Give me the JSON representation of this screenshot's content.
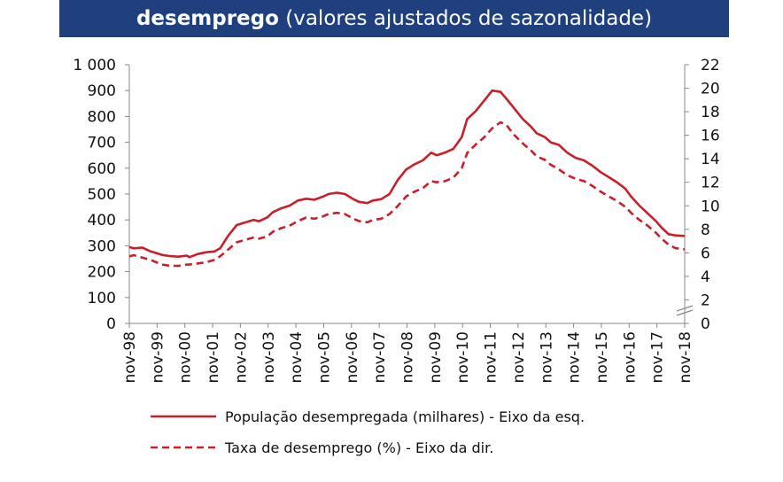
{
  "title": {
    "bold": "desemprego",
    "rest": " (valores ajustados de sazonalidade)"
  },
  "colors": {
    "header_bg": "#1f3f7f",
    "series": "#c8202b",
    "axis": "#888888"
  },
  "chart_data": {
    "type": "line",
    "title": "desemprego (valores ajustados de sazonalidade)",
    "x_tick_labels": [
      "nov-98",
      "nov-99",
      "nov-00",
      "nov-01",
      "nov-02",
      "nov-03",
      "nov-04",
      "nov-05",
      "nov-06",
      "nov-07",
      "nov-08",
      "nov-09",
      "nov-10",
      "nov-11",
      "nov-12",
      "nov-13",
      "nov-14",
      "nov-15",
      "nov-16",
      "nov-17",
      "nov-18"
    ],
    "y_left": {
      "ticks": [
        "0",
        "100",
        "200",
        "300",
        "400",
        "500",
        "600",
        "700",
        "800",
        "900",
        "1 000"
      ],
      "ylim": [
        0,
        1000
      ]
    },
    "y_right": {
      "ticks": [
        "0",
        "2",
        "4",
        "6",
        "8",
        "10",
        "12",
        "14",
        "16",
        "18",
        "20",
        "22"
      ],
      "ylim": [
        0,
        22
      ]
    },
    "legend_position": "bottom",
    "grid": false,
    "series": [
      {
        "name": "População desempregada (milhares) - Eixo da esq.",
        "axis": "left",
        "style": "solid",
        "x": [
          1998.83,
          1999.0,
          1999.3,
          1999.6,
          1999.8,
          2000.0,
          2000.3,
          2000.6,
          2000.9,
          2001.0,
          2001.3,
          2001.6,
          2001.9,
          2002.1,
          2002.4,
          2002.7,
          2003.0,
          2003.3,
          2003.5,
          2003.8,
          2004.0,
          2004.3,
          2004.6,
          2004.9,
          2005.2,
          2005.5,
          2005.8,
          2006.0,
          2006.3,
          2006.6,
          2006.9,
          2007.1,
          2007.4,
          2007.6,
          2007.9,
          2008.2,
          2008.5,
          2008.8,
          2009.1,
          2009.4,
          2009.7,
          2009.9,
          2010.2,
          2010.5,
          2010.8,
          2011.0,
          2011.3,
          2011.6,
          2011.9,
          2012.2,
          2012.4,
          2012.7,
          2013.0,
          2013.3,
          2013.5,
          2013.8,
          2014.0,
          2014.3,
          2014.6,
          2014.9,
          2015.2,
          2015.5,
          2015.8,
          2016.1,
          2016.4,
          2016.7,
          2016.9,
          2017.2,
          2017.5,
          2017.8,
          2018.0,
          2018.25,
          2018.5,
          2018.83
        ],
        "values": [
          295,
          290,
          293,
          278,
          272,
          265,
          260,
          258,
          262,
          256,
          268,
          275,
          278,
          290,
          340,
          380,
          390,
          400,
          395,
          410,
          430,
          445,
          455,
          475,
          482,
          478,
          490,
          500,
          505,
          500,
          480,
          470,
          465,
          475,
          480,
          500,
          555,
          595,
          615,
          630,
          660,
          650,
          660,
          675,
          720,
          790,
          820,
          860,
          900,
          895,
          870,
          830,
          790,
          760,
          735,
          720,
          700,
          690,
          660,
          640,
          630,
          610,
          585,
          565,
          545,
          520,
          490,
          455,
          425,
          395,
          370,
          345,
          340,
          338
        ]
      },
      {
        "name": "Taxa de desemprego (%) - Eixo da dir.",
        "axis": "right",
        "style": "dashed",
        "x": [
          1998.83,
          1999.0,
          1999.3,
          1999.6,
          1999.8,
          2000.0,
          2000.3,
          2000.6,
          2000.9,
          2001.0,
          2001.3,
          2001.6,
          2001.9,
          2002.1,
          2002.4,
          2002.7,
          2003.0,
          2003.3,
          2003.5,
          2003.8,
          2004.0,
          2004.3,
          2004.6,
          2004.9,
          2005.2,
          2005.5,
          2005.8,
          2006.0,
          2006.3,
          2006.6,
          2006.9,
          2007.1,
          2007.4,
          2007.6,
          2007.9,
          2008.2,
          2008.5,
          2008.8,
          2009.1,
          2009.4,
          2009.7,
          2009.9,
          2010.2,
          2010.5,
          2010.8,
          2011.0,
          2011.3,
          2011.6,
          2011.9,
          2012.2,
          2012.4,
          2012.7,
          2013.0,
          2013.3,
          2013.5,
          2013.8,
          2014.0,
          2014.3,
          2014.6,
          2014.9,
          2015.2,
          2015.5,
          2015.8,
          2016.1,
          2016.4,
          2016.7,
          2016.9,
          2017.2,
          2017.5,
          2017.8,
          2018.0,
          2018.25,
          2018.5,
          2018.83
        ],
        "values": [
          5.7,
          5.8,
          5.6,
          5.4,
          5.2,
          5.0,
          4.9,
          4.9,
          5.0,
          5.0,
          5.1,
          5.2,
          5.4,
          5.7,
          6.3,
          6.9,
          7.1,
          7.3,
          7.2,
          7.4,
          7.8,
          8.1,
          8.3,
          8.7,
          9.0,
          8.9,
          9.1,
          9.3,
          9.4,
          9.3,
          8.9,
          8.7,
          8.6,
          8.8,
          8.9,
          9.3,
          10.0,
          10.8,
          11.2,
          11.5,
          12.1,
          12.0,
          12.1,
          12.4,
          13.2,
          14.5,
          15.2,
          15.8,
          16.6,
          17.1,
          16.9,
          16.0,
          15.3,
          14.7,
          14.2,
          13.9,
          13.5,
          13.1,
          12.6,
          12.3,
          12.1,
          11.7,
          11.2,
          10.8,
          10.4,
          9.9,
          9.4,
          8.8,
          8.3,
          7.7,
          7.2,
          6.7,
          6.4,
          6.3
        ]
      }
    ]
  }
}
